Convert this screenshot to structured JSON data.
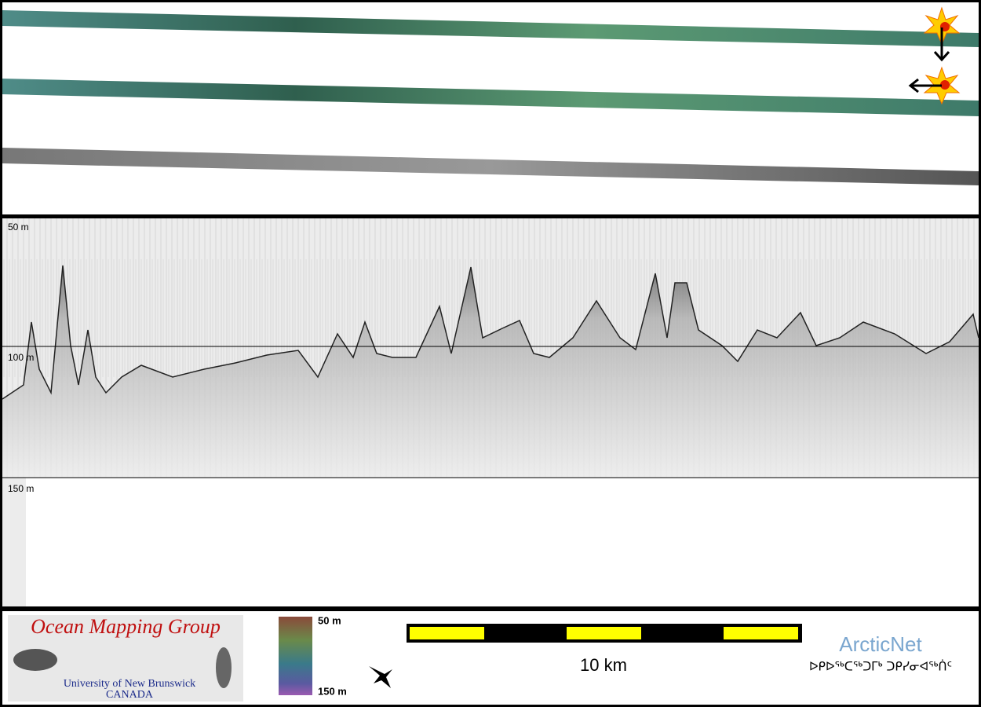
{
  "echogram": {
    "depth_labels": [
      "50 m",
      "100 m",
      "150 m"
    ]
  },
  "footer": {
    "logo": {
      "title": "Ocean Mapping Group",
      "subtitle": "University of New Brunswick",
      "country": "CANADA"
    },
    "colorbar": {
      "top_label": "50 m",
      "bottom_label": "150 m"
    },
    "scale_bar": {
      "label": "10 km"
    },
    "partner": {
      "name": "ArcticNet",
      "name_inuktitut": "ᐅᑭᐅᖅᑕᖅᑐᒥᒃ ᑐᑭᓯᓂᐊᖅᑏᑦ"
    }
  }
}
